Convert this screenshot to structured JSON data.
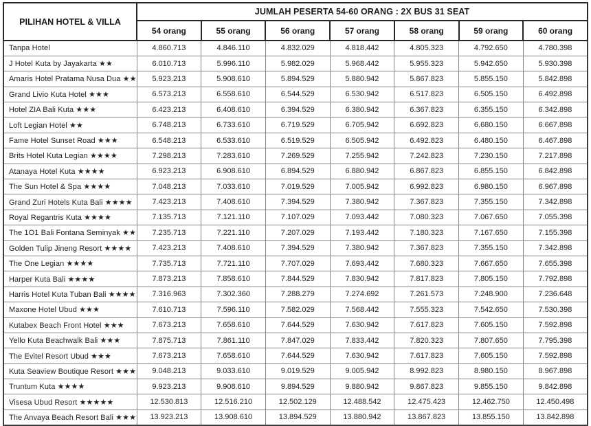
{
  "table": {
    "corner_header": "PILIHAN HOTEL & VILLA",
    "title": "JUMLAH PESERTA 54-60 ORANG : 2X BUS 31 SEAT",
    "columns": [
      "54 orang",
      "55 orang",
      "56 orang",
      "57 orang",
      "58 orang",
      "59 orang",
      "60 orang"
    ],
    "rows": [
      {
        "hotel": "Tanpa Hotel",
        "prices": [
          "4.860.713",
          "4.846.110",
          "4.832.029",
          "4.818.442",
          "4.805.323",
          "4.792.650",
          "4.780.398"
        ]
      },
      {
        "hotel": "J Hotel Kuta by Jayakarta ★★",
        "prices": [
          "6.010.713",
          "5.996.110",
          "5.982.029",
          "5.968.442",
          "5.955.323",
          "5.942.650",
          "5.930.398"
        ]
      },
      {
        "hotel": "Amaris Hotel Pratama Nusa Dua ★★",
        "prices": [
          "5.923.213",
          "5.908.610",
          "5.894.529",
          "5.880.942",
          "5.867.823",
          "5.855.150",
          "5.842.898"
        ]
      },
      {
        "hotel": "Grand Livio Kuta Hotel ★★★",
        "prices": [
          "6.573.213",
          "6.558.610",
          "6.544.529",
          "6.530.942",
          "6.517.823",
          "6.505.150",
          "6.492.898"
        ]
      },
      {
        "hotel": "Hotel ZIA Bali Kuta ★★★",
        "prices": [
          "6.423.213",
          "6.408.610",
          "6.394.529",
          "6.380.942",
          "6.367.823",
          "6.355.150",
          "6.342.898"
        ]
      },
      {
        "hotel": "Loft Legian Hotel ★★",
        "prices": [
          "6.748.213",
          "6.733.610",
          "6.719.529",
          "6.705.942",
          "6.692.823",
          "6.680.150",
          "6.667.898"
        ]
      },
      {
        "hotel": "Fame Hotel Sunset Road ★★★",
        "prices": [
          "6.548.213",
          "6.533.610",
          "6.519.529",
          "6.505.942",
          "6.492.823",
          "6.480.150",
          "6.467.898"
        ]
      },
      {
        "hotel": "Brits Hotel Kuta Legian ★★★★",
        "prices": [
          "7.298.213",
          "7.283.610",
          "7.269.529",
          "7.255.942",
          "7.242.823",
          "7.230.150",
          "7.217.898"
        ]
      },
      {
        "hotel": "Atanaya Hotel Kuta ★★★★",
        "prices": [
          "6.923.213",
          "6.908.610",
          "6.894.529",
          "6.880.942",
          "6.867.823",
          "6.855.150",
          "6.842.898"
        ]
      },
      {
        "hotel": "The Sun Hotel & Spa ★★★★",
        "prices": [
          "7.048.213",
          "7.033.610",
          "7.019.529",
          "7.005.942",
          "6.992.823",
          "6.980.150",
          "6.967.898"
        ]
      },
      {
        "hotel": "Grand Zuri Hotels Kuta Bali ★★★★",
        "prices": [
          "7.423.213",
          "7.408.610",
          "7.394.529",
          "7.380.942",
          "7.367.823",
          "7.355.150",
          "7.342.898"
        ]
      },
      {
        "hotel": "Royal Regantris Kuta ★★★★",
        "prices": [
          "7.135.713",
          "7.121.110",
          "7.107.029",
          "7.093.442",
          "7.080.323",
          "7.067.650",
          "7.055.398"
        ]
      },
      {
        "hotel": "The 1O1 Bali Fontana Seminyak ★★★★",
        "prices": [
          "7.235.713",
          "7.221.110",
          "7.207.029",
          "7.193.442",
          "7.180.323",
          "7.167.650",
          "7.155.398"
        ]
      },
      {
        "hotel": "Golden Tulip Jineng Resort ★★★★",
        "prices": [
          "7.423.213",
          "7.408.610",
          "7.394.529",
          "7.380.942",
          "7.367.823",
          "7.355.150",
          "7.342.898"
        ]
      },
      {
        "hotel": "The One Legian ★★★★",
        "prices": [
          "7.735.713",
          "7.721.110",
          "7.707.029",
          "7.693.442",
          "7.680.323",
          "7.667.650",
          "7.655.398"
        ]
      },
      {
        "hotel": "Harper Kuta Bali ★★★★",
        "prices": [
          "7.873.213",
          "7.858.610",
          "7.844.529",
          "7.830.942",
          "7.817.823",
          "7.805.150",
          "7.792.898"
        ]
      },
      {
        "hotel": "Harris Hotel Kuta Tuban Bali ★★★★",
        "prices": [
          "7.316.963",
          "7.302.360",
          "7.288.279",
          "7.274.692",
          "7.261.573",
          "7.248.900",
          "7.236.648"
        ]
      },
      {
        "hotel": "Maxone Hotel Ubud ★★★",
        "prices": [
          "7.610.713",
          "7.596.110",
          "7.582.029",
          "7.568.442",
          "7.555.323",
          "7.542.650",
          "7.530.398"
        ]
      },
      {
        "hotel": "Kutabex Beach Front Hotel ★★★",
        "prices": [
          "7.673.213",
          "7.658.610",
          "7.644.529",
          "7.630.942",
          "7.617.823",
          "7.605.150",
          "7.592.898"
        ]
      },
      {
        "hotel": "Yello Kuta Beachwalk Bali ★★★",
        "prices": [
          "7.875.713",
          "7.861.110",
          "7.847.029",
          "7.833.442",
          "7.820.323",
          "7.807.650",
          "7.795.398"
        ]
      },
      {
        "hotel": "The Evitel Resort Ubud ★★★",
        "prices": [
          "7.673.213",
          "7.658.610",
          "7.644.529",
          "7.630.942",
          "7.617.823",
          "7.605.150",
          "7.592.898"
        ]
      },
      {
        "hotel": "Kuta Seaview Boutique Resort ★★★★",
        "prices": [
          "9.048.213",
          "9.033.610",
          "9.019.529",
          "9.005.942",
          "8.992.823",
          "8.980.150",
          "8.967.898"
        ]
      },
      {
        "hotel": "Truntum Kuta ★★★★",
        "prices": [
          "9.923.213",
          "9.908.610",
          "9.894.529",
          "9.880.942",
          "9.867.823",
          "9.855.150",
          "9.842.898"
        ]
      },
      {
        "hotel": "Visesa Ubud Resort ★★★★★",
        "prices": [
          "12.530.813",
          "12.516.210",
          "12.502.129",
          "12.488.542",
          "12.475.423",
          "12.462.750",
          "12.450.498"
        ]
      },
      {
        "hotel": "The Anvaya Beach Resort Bali ★★★★★",
        "prices": [
          "13.923.213",
          "13.908.610",
          "13.894.529",
          "13.880.942",
          "13.867.823",
          "13.855.150",
          "13.842.898"
        ]
      }
    ]
  },
  "colors": {
    "header_border": "#262626",
    "body_border": "#848484",
    "text": "#1f1f1f",
    "background": "#ffffff"
  }
}
